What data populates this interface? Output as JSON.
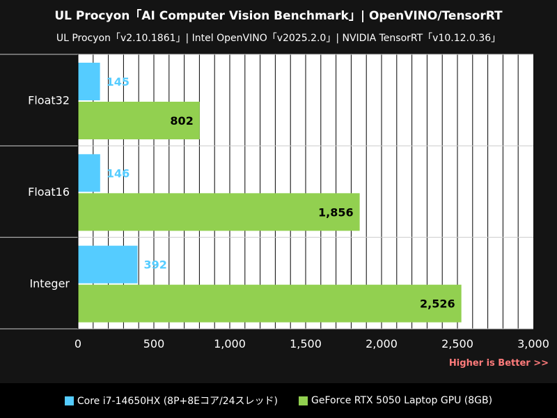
{
  "chart_data": {
    "type": "bar",
    "orientation": "horizontal",
    "title": "UL Procyon「AI Computer Vision Benchmark」| OpenVINO/TensorRT",
    "subtitle": "UL Procyon「v2.10.1861」| Intel OpenVINO「v2025.2.0」| NVIDIA TensorRT「v10.12.0.36」",
    "categories": [
      "Float32",
      "Float16",
      "Integer"
    ],
    "series": [
      {
        "name": "Core i7-14650HX (8P+8Eコア/24スレッド)",
        "color": "#55ccff",
        "values": [
          145,
          146,
          392
        ],
        "labels": [
          "145",
          "146",
          "392"
        ]
      },
      {
        "name": "GeForce RTX 5050 Laptop GPU (8GB)",
        "color": "#92d050",
        "values": [
          802,
          1856,
          2526
        ],
        "labels": [
          "802",
          "1,856",
          "2,526"
        ]
      }
    ],
    "xlim": [
      0,
      3000
    ],
    "x_ticks": [
      0,
      500,
      1000,
      1500,
      2000,
      2500,
      3000
    ],
    "x_tick_labels": [
      "0",
      "500",
      "1,000",
      "1,500",
      "2,000",
      "2,500",
      "3,000"
    ],
    "minor_grid_step": 100,
    "grid": true,
    "legend_position": "bottom",
    "note": "Higher is Better >>"
  }
}
